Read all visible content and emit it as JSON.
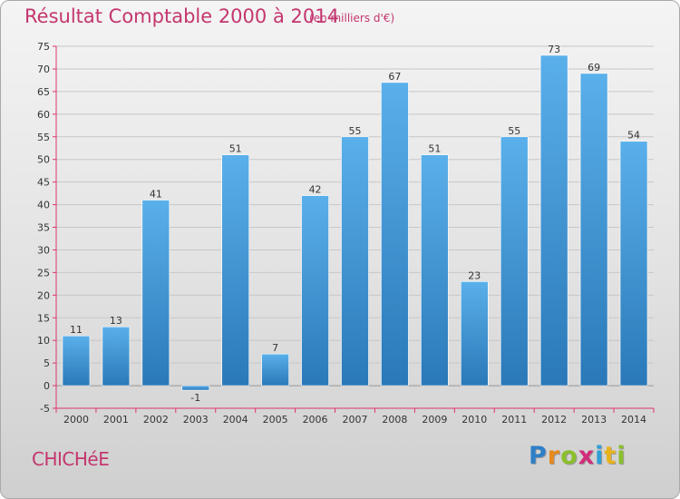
{
  "header": {
    "title": "Résultat Comptable 2000 à 2014",
    "subtitle": "(en milliers d'€)"
  },
  "footer": {
    "commune": "CHICHéE",
    "logo": [
      "P",
      "r",
      "o",
      "x",
      "i",
      "t",
      "i"
    ],
    "logo_colors": [
      "#2f7fc7",
      "#e8891c",
      "#8bbf2c",
      "#d22d7b",
      "#2f9fd7",
      "#e8b21c",
      "#8bbf2c"
    ]
  },
  "chart_data": {
    "type": "bar",
    "title": "Résultat Comptable 2000 à 2014",
    "subtitle": "(en milliers d'€)",
    "xlabel": "",
    "ylabel": "",
    "categories": [
      "2000",
      "2001",
      "2002",
      "2003",
      "2004",
      "2005",
      "2006",
      "2007",
      "2008",
      "2009",
      "2010",
      "2011",
      "2012",
      "2013",
      "2014"
    ],
    "values": [
      11,
      13,
      41,
      -1,
      51,
      7,
      42,
      55,
      67,
      51,
      23,
      55,
      73,
      69,
      54
    ],
    "ylim": [
      -5,
      75
    ],
    "yticks": [
      -5,
      0,
      5,
      10,
      15,
      20,
      25,
      30,
      35,
      40,
      45,
      50,
      55,
      60,
      65,
      70,
      75
    ],
    "grid": "horizontal",
    "bar_color": "#4ea3e0",
    "bar_color_dark": "#2a78b8",
    "axis_color": "#e0336e"
  }
}
